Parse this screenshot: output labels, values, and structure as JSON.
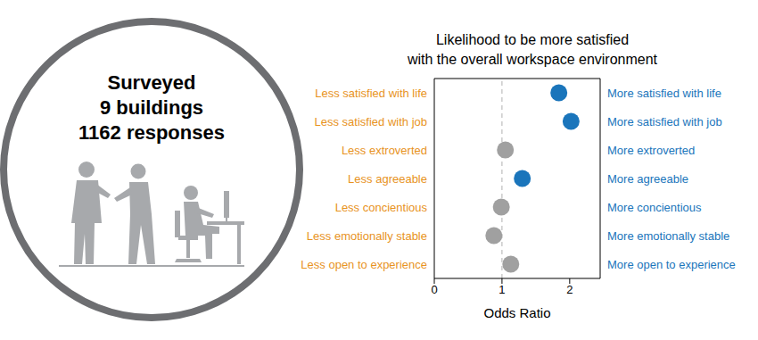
{
  "chart_data": {
    "type": "scatter",
    "title": [
      "Likelihood to be more satisfied",
      "with the overall workspace environment"
    ],
    "categories": [
      "Less satisfied with life",
      "Less satisfied with job",
      "Less extroverted",
      "Less agreeable",
      "Less concientious",
      "Less emotionally stable",
      "Less open to experience"
    ],
    "categories_right": [
      "More satisfied with life",
      "More satisfied with job",
      "More extroverted",
      "More agreeable",
      "More concientious",
      "More emotionally stable",
      "More open to experience"
    ],
    "values": [
      1.84,
      2.02,
      1.05,
      1.3,
      0.99,
      0.88,
      1.13
    ],
    "colors": [
      "#1a75bb",
      "#1a75bb",
      "#a0a0a0",
      "#1a75bb",
      "#a0a0a0",
      "#a0a0a0",
      "#a0a0a0"
    ],
    "x_label": "Odds Ratio",
    "xlim": [
      0,
      2.45
    ],
    "xticks": [
      0,
      1,
      2
    ],
    "reference_line": 1
  },
  "panel": {
    "lines": [
      "Surveyed",
      "9 buildings",
      "1162 responses"
    ]
  }
}
